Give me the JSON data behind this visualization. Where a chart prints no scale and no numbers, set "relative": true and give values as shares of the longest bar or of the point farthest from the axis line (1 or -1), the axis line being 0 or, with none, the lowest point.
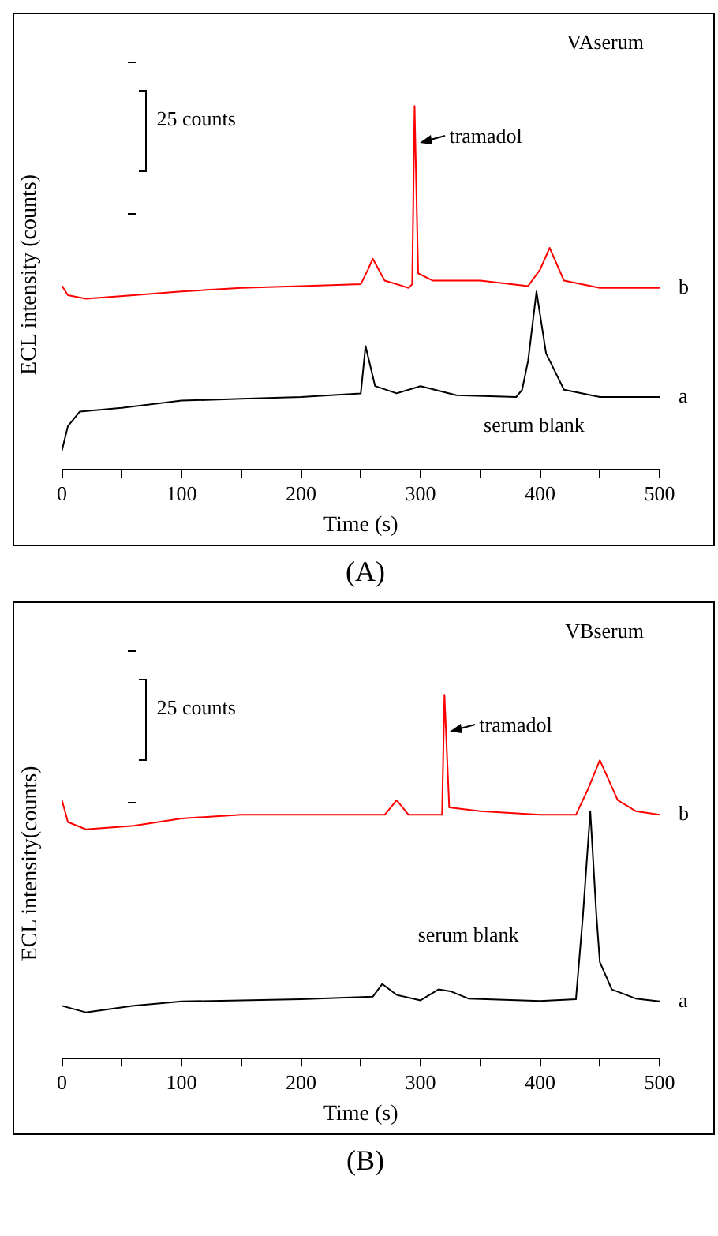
{
  "chart_data": [
    {
      "type": "line",
      "relative": true,
      "xlabel": "Time (s)",
      "ylabel": "ECL intensity (counts)",
      "xlim": [
        0,
        500
      ],
      "xticks": [
        0,
        {
          "value": 50,
          "label": null
        },
        100,
        {
          "value": 150,
          "label": null
        },
        200,
        {
          "value": 250,
          "label": null
        },
        300,
        {
          "value": 350,
          "label": null
        },
        400,
        {
          "value": 450,
          "label": null
        },
        500
      ],
      "tick_labels": "x",
      "grid": false,
      "legend": false,
      "marker": "none",
      "line_style": "solid",
      "series": [
        {
          "name": "b",
          "color": "#ff0000",
          "x": [
            0,
            5,
            20,
            60,
            100,
            150,
            200,
            250,
            256,
            260,
            270,
            290,
            293,
            295,
            298,
            310,
            350,
            390,
            400,
            408,
            420,
            450,
            500
          ],
          "values": [
            0.506,
            0.48,
            0.47,
            0.48,
            0.49,
            0.5,
            0.505,
            0.51,
            0.55,
            0.58,
            0.52,
            0.5,
            0.51,
            1.0,
            0.54,
            0.52,
            0.52,
            0.505,
            0.55,
            0.61,
            0.52,
            0.5,
            0.5
          ]
        },
        {
          "name": "a",
          "color": "#000000",
          "x": [
            0,
            5,
            15,
            50,
            100,
            150,
            200,
            250,
            254,
            262,
            280,
            300,
            330,
            380,
            385,
            390,
            397,
            405,
            420,
            450,
            500
          ],
          "values": [
            0.053,
            0.12,
            0.16,
            0.17,
            0.19,
            0.195,
            0.2,
            0.21,
            0.34,
            0.23,
            0.21,
            0.23,
            0.205,
            0.2,
            0.22,
            0.3,
            0.49,
            0.32,
            0.22,
            0.2,
            0.2
          ]
        }
      ],
      "annotations": [
        "VAserum",
        "25 counts",
        "(A)",
        "serum blank",
        {
          "text": "tramadol",
          "x": 295,
          "y": 1.0
        }
      ]
    },
    {
      "type": "line",
      "relative": true,
      "xlabel": "Time (s)",
      "ylabel": "ECL intensity(counts)",
      "xlim": [
        0,
        500
      ],
      "xticks": [
        0,
        {
          "value": 50,
          "label": null
        },
        100,
        {
          "value": 150,
          "label": null
        },
        200,
        {
          "value": 250,
          "label": null
        },
        300,
        {
          "value": 350,
          "label": null
        },
        400,
        {
          "value": 450,
          "label": null
        },
        500
      ],
      "tick_labels": "x",
      "grid": false,
      "legend": false,
      "marker": "none",
      "line_style": "solid",
      "series": [
        {
          "name": "b",
          "color": "#ff0000",
          "x": [
            0,
            5,
            20,
            60,
            100,
            150,
            200,
            270,
            280,
            290,
            318,
            320,
            324,
            350,
            400,
            430,
            440,
            450,
            465,
            480,
            500
          ],
          "values": [
            0.71,
            0.65,
            0.63,
            0.64,
            0.66,
            0.67,
            0.67,
            0.67,
            0.71,
            0.67,
            0.67,
            1.0,
            0.69,
            0.68,
            0.67,
            0.67,
            0.74,
            0.82,
            0.71,
            0.68,
            0.67
          ]
        },
        {
          "name": "a",
          "color": "#000000",
          "x": [
            0,
            20,
            60,
            100,
            150,
            200,
            260,
            268,
            280,
            300,
            315,
            325,
            340,
            400,
            430,
            436,
            442,
            447,
            450,
            460,
            480,
            500
          ],
          "values": [
            0.145,
            0.127,
            0.145,
            0.157,
            0.16,
            0.163,
            0.17,
            0.205,
            0.175,
            0.16,
            0.19,
            0.185,
            0.165,
            0.158,
            0.163,
            0.4,
            0.68,
            0.4,
            0.265,
            0.19,
            0.165,
            0.157
          ]
        }
      ],
      "annotations": [
        "VBserum",
        "25 counts",
        "(B)",
        "serum blank",
        {
          "text": "tramadol",
          "x": 320,
          "y": 1.0
        }
      ]
    }
  ]
}
